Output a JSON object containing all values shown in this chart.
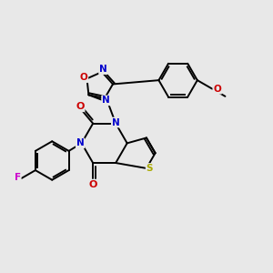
{
  "bg_color": "#e8e8e8",
  "bond_color": "#000000",
  "atom_colors": {
    "N": "#0000cc",
    "O": "#cc0000",
    "S": "#aaaa00",
    "F": "#cc00cc",
    "C": "#000000"
  }
}
